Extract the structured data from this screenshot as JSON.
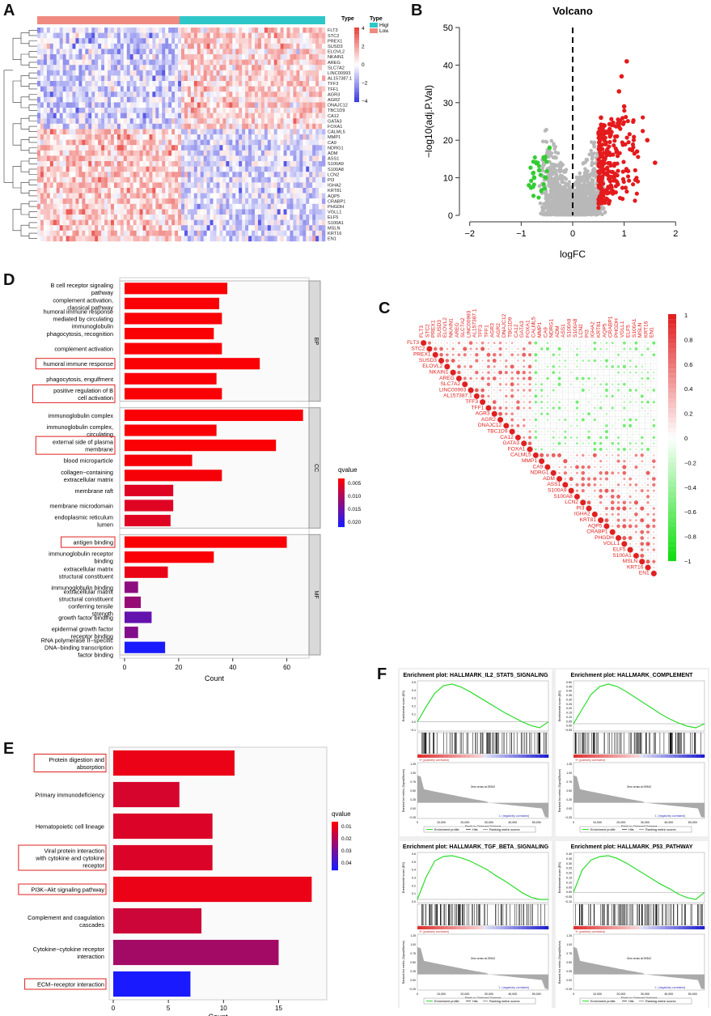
{
  "panels": {
    "a": "A",
    "b": "B",
    "c": "C",
    "d": "D",
    "e": "E",
    "f": "F"
  },
  "colors": {
    "heat_high": "#e8403a",
    "heat_low": "#3a3ae0",
    "type_high": "#2ec7c9",
    "type_low": "#f08a80",
    "up": "#e41a1c",
    "down": "#33cc33",
    "ns": "#b8b8b8",
    "q_low": "#ff0000",
    "q_high": "#1a1aff",
    "gsea_line": "#2cdc2c"
  },
  "heatmap": {
    "legend_title": "Type",
    "legend_items": [
      "High",
      "Low"
    ],
    "scale_ticks": [
      "4",
      "2",
      "0",
      "−2",
      "−4"
    ],
    "genes": [
      "FLT3",
      "STC2",
      "PREX1",
      "SUSD3",
      "ELOVL2",
      "NKAIN1",
      "AREG",
      "SLC7A2",
      "LINC00993",
      "AL157387.1",
      "TFF3",
      "TFF1",
      "AGR3",
      "AGR2",
      "DNAJC12",
      "TBC1D9",
      "CA12",
      "GATA3",
      "FOXA1",
      "CALML5",
      "MMP1",
      "CA9",
      "NDRG1",
      "ADM",
      "ASS1",
      "S100A9",
      "S100A8",
      "LCN2",
      "PI3",
      "IGHA2",
      "KRT81",
      "AQP5",
      "CRABP1",
      "PHGDH",
      "VGLL1",
      "ELF5",
      "S100A1",
      "MSLN",
      "KRT16",
      "EN1"
    ],
    "n_up_genes": 19
  },
  "chart_data": [
    {
      "id": "volcano",
      "type": "scatter",
      "title": "Volcano",
      "xlabel": "logFC",
      "ylabel": "−log10(adj.P.Val)",
      "xlim": [
        -2.2,
        2.2
      ],
      "ylim": [
        0,
        50
      ],
      "xticks": [
        "−2",
        "−1",
        "0",
        "1",
        "2"
      ],
      "yticks": [
        "0",
        "10",
        "20",
        "30",
        "40",
        "50"
      ],
      "vline": 0,
      "highlight_points": [
        [
          1.05,
          41
        ],
        [
          0.95,
          37
        ],
        [
          0.9,
          33
        ],
        [
          1.0,
          29
        ],
        [
          1.45,
          20
        ],
        [
          1.6,
          14
        ],
        [
          1.25,
          17
        ],
        [
          0.55,
          26
        ],
        [
          0.6,
          24
        ],
        [
          -0.55,
          15
        ],
        [
          -0.65,
          12
        ],
        [
          -0.85,
          8
        ],
        [
          -0.45,
          18
        ],
        [
          -0.75,
          10
        ]
      ]
    },
    {
      "id": "go_bar",
      "type": "bar",
      "orientation": "horizontal",
      "xlabel": "Count",
      "xlim": [
        0,
        70
      ],
      "xticks": [
        "0",
        "20",
        "40",
        "60"
      ],
      "legend_title": "qvalue",
      "legend_ticks": [
        "0.005",
        "0.010",
        "0.015",
        "0.020"
      ],
      "groups": [
        {
          "name": "BP",
          "terms": [
            {
              "label": "B cell receptor signaling pathway",
              "count": 38,
              "q": 0.0005,
              "boxed": false
            },
            {
              "label": "complement activation, classical pathway",
              "count": 35,
              "q": 0.0005,
              "boxed": false
            },
            {
              "label": "humoral immune response mediated by circulating immunoglobulin",
              "count": 36,
              "q": 0.0005,
              "boxed": false
            },
            {
              "label": "phagocytosis, recognition",
              "count": 33,
              "q": 0.0005,
              "boxed": false
            },
            {
              "label": "complement activation",
              "count": 36,
              "q": 0.0005,
              "boxed": false
            },
            {
              "label": "humoral immune response",
              "count": 50,
              "q": 0.0005,
              "boxed": true
            },
            {
              "label": "phagocytosis, engulfment",
              "count": 34,
              "q": 0.0005,
              "boxed": false
            },
            {
              "label": "positive regulation of B cell activation",
              "count": 36,
              "q": 0.0005,
              "boxed": true
            }
          ]
        },
        {
          "name": "CC",
          "terms": [
            {
              "label": "immunoglobulin complex",
              "count": 66,
              "q": 0.0005,
              "boxed": false
            },
            {
              "label": "immunoglobulin complex, circulating",
              "count": 34,
              "q": 0.0005,
              "boxed": false
            },
            {
              "label": "external side of plasma membrane",
              "count": 56,
              "q": 0.0005,
              "boxed": true
            },
            {
              "label": "blood microparticle",
              "count": 25,
              "q": 0.0008,
              "boxed": false
            },
            {
              "label": "collagen−containing extracellular matrix",
              "count": 36,
              "q": 0.0008,
              "boxed": false
            },
            {
              "label": "membrane raft",
              "count": 18,
              "q": 0.003,
              "boxed": false
            },
            {
              "label": "membrane microdomain",
              "count": 18,
              "q": 0.003,
              "boxed": false
            },
            {
              "label": "endoplasmic reticulum lumen",
              "count": 17,
              "q": 0.003,
              "boxed": false
            }
          ]
        },
        {
          "name": "MF",
          "terms": [
            {
              "label": "antigen binding",
              "count": 60,
              "q": 0.0005,
              "boxed": true
            },
            {
              "label": "immunoglobulin receptor binding",
              "count": 33,
              "q": 0.0005,
              "boxed": false
            },
            {
              "label": "extracellular matrix structural constituent",
              "count": 16,
              "q": 0.002,
              "boxed": false
            },
            {
              "label": "immunoglobulin binding",
              "count": 5,
              "q": 0.011,
              "boxed": false
            },
            {
              "label": "extracellular matrix structural constituent conferring tensile strength",
              "count": 6,
              "q": 0.01,
              "boxed": false
            },
            {
              "label": "growth factor binding",
              "count": 10,
              "q": 0.015,
              "boxed": false
            },
            {
              "label": "epidermal growth factor receptor binding",
              "count": 5,
              "q": 0.012,
              "boxed": false
            },
            {
              "label": "RNA polymerase II−specific DNA−binding transcription factor binding",
              "count": 15,
              "q": 0.022,
              "boxed": false
            }
          ]
        }
      ]
    },
    {
      "id": "corr",
      "type": "heatmap",
      "subtype": "correlation-dotplot",
      "legend_ticks": [
        "1",
        "0.8",
        "0.6",
        "0.4",
        "0.2",
        "0",
        "−0.2",
        "−0.4",
        "−0.6",
        "−0.8",
        "−1"
      ],
      "n_up_genes": 19
    },
    {
      "id": "kegg_bar",
      "type": "bar",
      "orientation": "horizontal",
      "xlabel": "Count",
      "xlim": [
        0,
        19
      ],
      "xticks": [
        "0",
        "5",
        "10",
        "15"
      ],
      "legend_title": "qvalue",
      "legend_ticks": [
        "0.01",
        "0.02",
        "0.03",
        "0.04"
      ],
      "terms": [
        {
          "label": "Protein digestion and absorption",
          "count": 11,
          "q": 0.004,
          "boxed": true
        },
        {
          "label": "Primary immunodeficiency",
          "count": 6,
          "q": 0.008,
          "boxed": false
        },
        {
          "label": "Hematopoietic cell lineage",
          "count": 9,
          "q": 0.007,
          "boxed": false
        },
        {
          "label": "Viral protein interaction with cytokine and cytokine receptor",
          "count": 9,
          "q": 0.007,
          "boxed": true
        },
        {
          "label": "PI3K−Akt signaling pathway",
          "count": 18,
          "q": 0.004,
          "boxed": true
        },
        {
          "label": "Complement and coagulation cascades",
          "count": 8,
          "q": 0.01,
          "boxed": false
        },
        {
          "label": "Cytokine−cytokine receptor interaction",
          "count": 15,
          "q": 0.018,
          "boxed": false
        },
        {
          "label": "ECM−receptor interaction",
          "count": 7,
          "q": 0.045,
          "boxed": true
        }
      ]
    },
    {
      "id": "gsea",
      "type": "line",
      "plots": [
        {
          "title": "Enrichment plot: HALLMARK_IL2_STAT5_SIGNALING",
          "es": [
            0,
            0.2,
            0.38,
            0.48,
            0.5,
            0.46,
            0.4,
            0.33,
            0.26,
            0.19,
            0.12,
            0.06,
            0.0,
            -0.05,
            -0.08,
            0
          ],
          "yticks": [
            "0.5",
            "0.4",
            "0.3",
            "0.2",
            "0.1",
            "0.0",
            "−0.1"
          ]
        },
        {
          "title": "Enrichment plot: HALLMARK_COMPLEMENT",
          "es": [
            0,
            0.18,
            0.36,
            0.46,
            0.49,
            0.46,
            0.4,
            0.33,
            0.26,
            0.19,
            0.12,
            0.06,
            0.01,
            -0.03,
            -0.05,
            0
          ],
          "yticks": [
            "0.50",
            "0.45",
            "0.40",
            "0.35",
            "0.30",
            "0.25",
            "0.20",
            "0.15",
            "0.10",
            "0.05",
            "0.00",
            "−0.05"
          ]
        },
        {
          "title": "Enrichment plot: HALLMARK_TGF_BETA_SIGNALING",
          "es": [
            0,
            0.3,
            0.52,
            0.58,
            0.59,
            0.56,
            0.52,
            0.46,
            0.4,
            0.32,
            0.25,
            0.17,
            0.09,
            0.03,
            0.0,
            0
          ],
          "yticks": [
            "0.6",
            "0.5",
            "0.4",
            "0.3",
            "0.2",
            "0.1",
            "0.0"
          ]
        },
        {
          "title": "Enrichment plot: HALLMARK_P53_PATHWAY",
          "es": [
            0,
            0.25,
            0.36,
            0.4,
            0.41,
            0.38,
            0.33,
            0.27,
            0.21,
            0.15,
            0.09,
            0.04,
            -0.02,
            -0.06,
            -0.08,
            0
          ],
          "yticks": [
            "0.40",
            "0.35",
            "0.30",
            "0.25",
            "0.20",
            "0.15",
            "0.10",
            "0.05",
            "0.00",
            "−0.05",
            "−0.10"
          ]
        }
      ],
      "xticks": [
        "0",
        "10,000",
        "20,000",
        "30,000",
        "40,000",
        "50,000"
      ],
      "ylabel_es": "Enrichment score (ES)",
      "ylabel_rank": "Ranked list metric (Signal2Noise)",
      "xlabel": "Rank in Ordered Dataset",
      "pos_label": "'H' (positively correlated)",
      "neg_label": "'L' (negatively correlated)",
      "zero_cross": "Zero cross at 29342",
      "legend": [
        "Enrichment profile",
        "Hits",
        "Ranking metric scores"
      ],
      "rank_yticks": [
        "1.25",
        "1.00",
        "0.75",
        "0.50",
        "0.25",
        "0.00",
        "−0.25"
      ]
    }
  ]
}
